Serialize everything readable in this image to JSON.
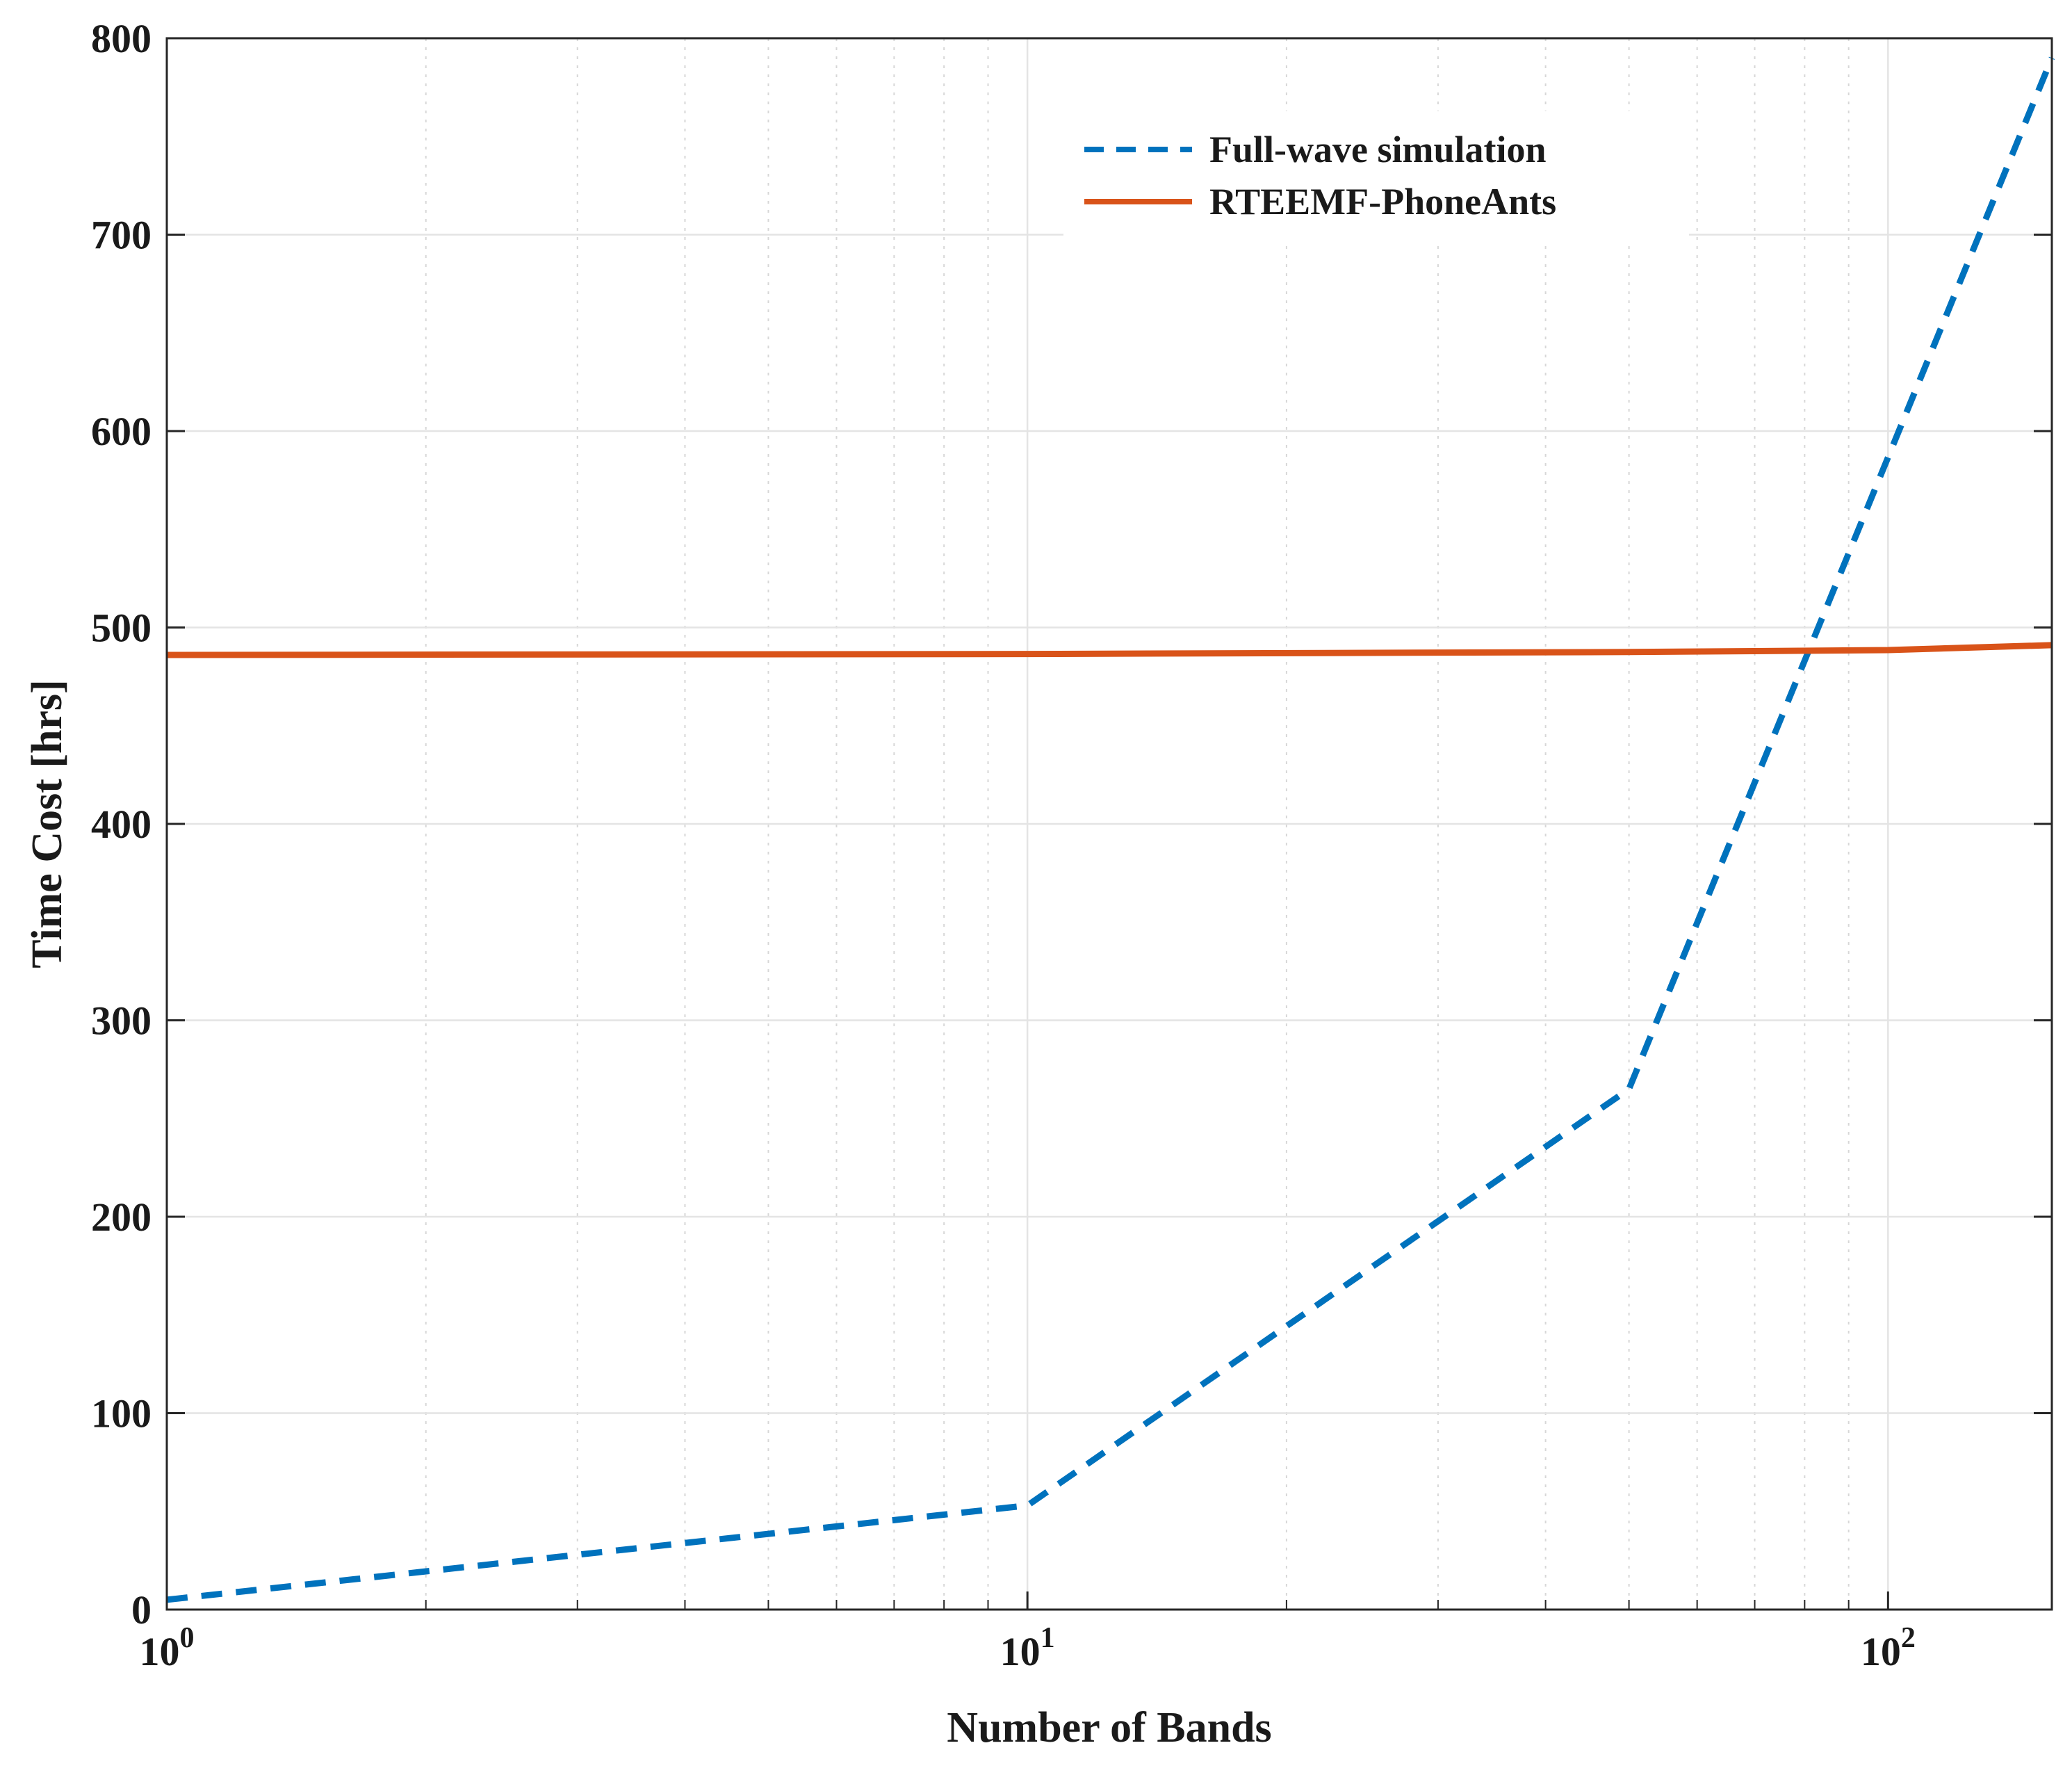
{
  "chart_data": {
    "type": "line",
    "title": "",
    "xlabel": "Number of Bands",
    "ylabel": "Time Cost [hrs]",
    "xscale": "log",
    "xlim": [
      1,
      155
    ],
    "ylim": [
      0,
      800
    ],
    "xticks": [
      {
        "value": 1,
        "base": "10",
        "exp": "0"
      },
      {
        "value": 10,
        "base": "10",
        "exp": "1"
      },
      {
        "value": 100,
        "base": "10",
        "exp": "2"
      }
    ],
    "yticks": [
      {
        "value": 0,
        "label": "0"
      },
      {
        "value": 100,
        "label": "100"
      },
      {
        "value": 200,
        "label": "200"
      },
      {
        "value": 300,
        "label": "300"
      },
      {
        "value": 400,
        "label": "400"
      },
      {
        "value": 500,
        "label": "500"
      },
      {
        "value": 600,
        "label": "600"
      },
      {
        "value": 700,
        "label": "700"
      },
      {
        "value": 800,
        "label": "800"
      }
    ],
    "grid": true,
    "legend_position": "top-right",
    "series": [
      {
        "name": "Full-wave simulation",
        "color": "#0072BD",
        "style": "dashed",
        "x": [
          1,
          10,
          50,
          155
        ],
        "y": [
          5,
          53,
          265,
          790
        ]
      },
      {
        "name": "RTEEMF-PhoneAnts",
        "color": "#D95319",
        "style": "solid",
        "x": [
          1,
          10,
          50,
          100,
          155
        ],
        "y": [
          486,
          486.5,
          487.5,
          488.5,
          491
        ]
      }
    ]
  }
}
